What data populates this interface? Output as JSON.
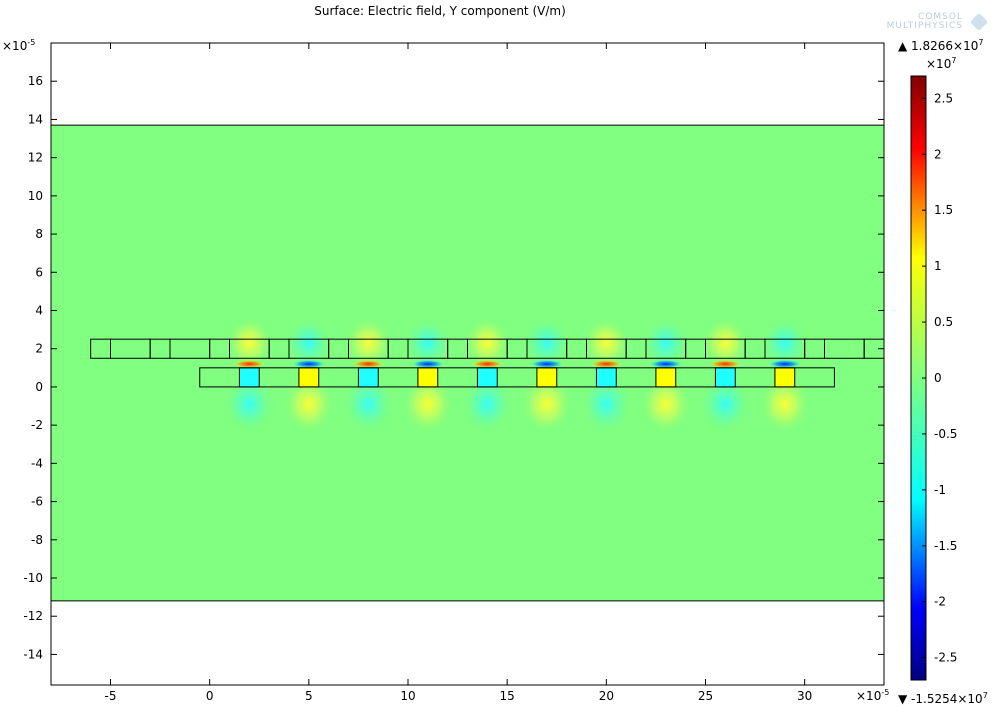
{
  "title": "Surface: Electric field, Y component (V/m)",
  "logo": {
    "line1": "COMSOL",
    "line2": "MULTIPHYSICS"
  },
  "chart_data": {
    "type": "heatmap",
    "title": "Surface: Electric field, Y component (V/m)",
    "xlabel": "",
    "ylabel": "",
    "x_multiplier": "×10",
    "x_multiplier_exp": "-5",
    "y_multiplier": "×10",
    "y_multiplier_exp": "-5",
    "xlim": [
      -8.0,
      34.0
    ],
    "ylim": [
      -15.6,
      18.0
    ],
    "x_ticks": [
      -5,
      0,
      5,
      10,
      15,
      20,
      25,
      30
    ],
    "y_ticks": [
      -14,
      -12,
      -10,
      -8,
      -6,
      -4,
      -2,
      0,
      2,
      4,
      6,
      8,
      10,
      12,
      14,
      16
    ],
    "domain": {
      "x": [
        -8.0,
        34.0
      ],
      "y": [
        -11.2,
        13.7
      ],
      "background_value": 0.0
    },
    "upper_row_boxes": [
      [
        -6.0,
        -5.0
      ],
      [
        -5.0,
        -3.0
      ],
      [
        -3.0,
        -2.0
      ],
      [
        -2.0,
        0.0
      ],
      [
        0.0,
        1.0
      ],
      [
        1.0,
        3.0
      ],
      [
        3.0,
        4.0
      ],
      [
        4.0,
        6.0
      ],
      [
        6.0,
        7.0
      ],
      [
        7.0,
        9.0
      ],
      [
        9.0,
        10.0
      ],
      [
        10.0,
        12.0
      ],
      [
        12.0,
        13.0
      ],
      [
        13.0,
        15.0
      ],
      [
        15.0,
        16.0
      ],
      [
        16.0,
        18.0
      ],
      [
        18.0,
        19.0
      ],
      [
        19.0,
        21.0
      ],
      [
        21.0,
        22.0
      ],
      [
        22.0,
        24.0
      ],
      [
        24.0,
        25.0
      ],
      [
        25.0,
        27.0
      ],
      [
        27.0,
        28.0
      ],
      [
        28.0,
        30.0
      ],
      [
        30.0,
        31.0
      ],
      [
        31.0,
        33.0
      ],
      [
        33.0,
        34.0
      ]
    ],
    "upper_row_y": [
      1.5,
      2.5
    ],
    "lower_strip": {
      "x": [
        -0.5,
        31.5
      ],
      "y": [
        0.0,
        1.0
      ]
    },
    "electrodes": [
      {
        "x": [
          1.5,
          2.5
        ],
        "sign": -1
      },
      {
        "x": [
          4.5,
          5.5
        ],
        "sign": 1
      },
      {
        "x": [
          7.5,
          8.5
        ],
        "sign": -1
      },
      {
        "x": [
          10.5,
          11.5
        ],
        "sign": 1
      },
      {
        "x": [
          13.5,
          14.5
        ],
        "sign": -1
      },
      {
        "x": [
          16.5,
          17.5
        ],
        "sign": 1
      },
      {
        "x": [
          19.5,
          20.5
        ],
        "sign": -1
      },
      {
        "x": [
          22.5,
          23.5
        ],
        "sign": 1
      },
      {
        "x": [
          25.5,
          26.5
        ],
        "sign": -1
      },
      {
        "x": [
          28.5,
          29.5
        ],
        "sign": 1
      }
    ],
    "colorbar": {
      "multiplier": "×10",
      "multiplier_exp": "7",
      "ticks": [
        2.5,
        2,
        1.5,
        1,
        0.5,
        0,
        -0.5,
        -1,
        -1.5,
        -2,
        -2.5
      ],
      "tick_labels": [
        "2.5",
        "2",
        "1.5",
        "1",
        "0.5",
        "0",
        "-0.5",
        "-1",
        "-1.5",
        "-2",
        "-2.5"
      ],
      "range": [
        -2.7,
        2.7
      ],
      "max_label": "▲ 1.8266×10",
      "max_exp": "7",
      "min_label": "▼ -1.5254×10",
      "min_exp": "7",
      "colormap": "rainbow (dark blue → blue → cyan → green → yellow → red → dark red)"
    },
    "grid": false,
    "legend": "right colorbar"
  }
}
